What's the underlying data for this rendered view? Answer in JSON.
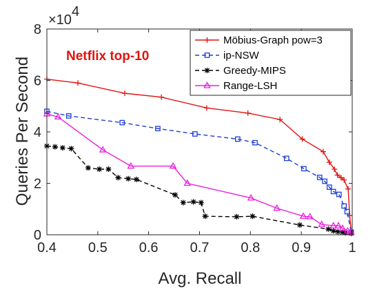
{
  "chart_data": {
    "type": "line",
    "annotation": "Netflix top-10",
    "xlabel": "Avg. Recall",
    "ylabel": "Queries Per Second",
    "y_exponent_label": "×10",
    "y_exponent_power": "4",
    "xlim": [
      0.4,
      1.0
    ],
    "ylim": [
      0,
      8
    ],
    "x_ticks": [
      "0.4",
      "0.5",
      "0.6",
      "0.7",
      "0.8",
      "0.9",
      "1"
    ],
    "y_ticks": [
      "0",
      "2",
      "4",
      "6",
      "8"
    ],
    "grid": false,
    "legend_position": "top-right",
    "series": [
      {
        "name": "Möbius-Graph pow=3",
        "color": "#e0130e",
        "line_style": "solid",
        "marker": "plus",
        "x": [
          0.4,
          0.461,
          0.553,
          0.625,
          0.714,
          0.795,
          0.858,
          0.902,
          0.943,
          0.955,
          0.965,
          0.971,
          0.978,
          0.984,
          0.992,
          0.995,
          0.998
        ],
        "y": [
          6.05,
          5.9,
          5.5,
          5.35,
          4.93,
          4.73,
          4.48,
          3.72,
          3.23,
          2.82,
          2.55,
          2.32,
          2.22,
          2.13,
          1.78,
          0.75,
          0.15
        ]
      },
      {
        "name": "ip-NSW",
        "color": "#1c3ed1",
        "line_style": "dashed",
        "marker": "square",
        "x": [
          0.4,
          0.443,
          0.548,
          0.618,
          0.691,
          0.775,
          0.809,
          0.871,
          0.905,
          0.936,
          0.946,
          0.955,
          0.963,
          0.974,
          0.984,
          0.99,
          0.998
        ],
        "y": [
          4.8,
          4.62,
          4.36,
          4.13,
          3.92,
          3.72,
          3.58,
          2.97,
          2.57,
          2.23,
          2.08,
          1.85,
          1.68,
          1.57,
          1.12,
          0.9,
          0.1
        ]
      },
      {
        "name": "Greedy-MIPS",
        "color": "#000000",
        "line_style": "dashed",
        "marker": "asterisk",
        "x": [
          0.4,
          0.416,
          0.431,
          0.448,
          0.481,
          0.503,
          0.521,
          0.54,
          0.56,
          0.576,
          0.652,
          0.668,
          0.688,
          0.703,
          0.711,
          0.773,
          0.804,
          0.897,
          0.953,
          0.963,
          0.972,
          0.981,
          0.987,
          0.998
        ],
        "y": [
          3.45,
          3.42,
          3.38,
          3.35,
          2.6,
          2.55,
          2.55,
          2.22,
          2.18,
          2.15,
          1.55,
          1.25,
          1.28,
          1.25,
          0.72,
          0.7,
          0.72,
          0.38,
          0.22,
          0.15,
          0.12,
          0.1,
          0.08,
          0.05
        ]
      },
      {
        "name": "Range-LSH",
        "color": "#ea1ddc",
        "line_style": "solid",
        "marker": "triangle",
        "x": [
          0.4,
          0.422,
          0.51,
          0.565,
          0.648,
          0.676,
          0.801,
          0.852,
          0.904,
          0.917,
          0.94,
          0.963,
          0.973,
          0.981,
          0.991,
          0.998
        ],
        "y": [
          4.7,
          4.58,
          3.3,
          2.67,
          2.67,
          2.0,
          1.43,
          1.03,
          0.72,
          0.7,
          0.4,
          0.35,
          0.35,
          0.25,
          0.15,
          0.1
        ]
      }
    ]
  }
}
